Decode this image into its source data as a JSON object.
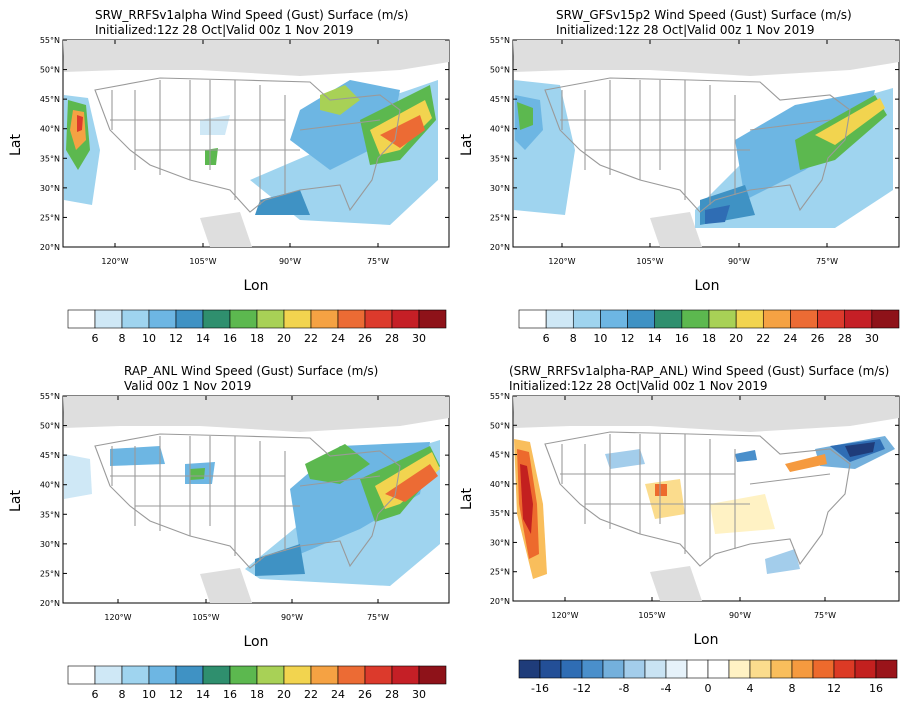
{
  "panels": [
    {
      "title": "SRW_RRFSv1alpha Wind Speed (Gust) Surface (m/s)",
      "subtitle": "Initialized:12z 28 Oct|Valid 00z 1 Nov 2019",
      "xlabel": "Lon",
      "ylabel": "Lat",
      "lat_ticks": [
        "55°N",
        "50°N",
        "45°N",
        "40°N",
        "35°N",
        "30°N",
        "25°N",
        "20°N"
      ],
      "lon_ticks": [
        "120°W",
        "105°W",
        "90°W",
        "75°W"
      ],
      "colorbar_labels": [
        "6",
        "8",
        "10",
        "12",
        "14",
        "16",
        "18",
        "20",
        "22",
        "24",
        "26",
        "28",
        "30"
      ],
      "colorbar_colors": [
        "#ffffff",
        "#cfe8f6",
        "#9fd4ef",
        "#6db6e3",
        "#3f92c4",
        "#2f8f6e",
        "#5cb84f",
        "#a8d156",
        "#f2d44f",
        "#f5a243",
        "#ec6b34",
        "#dc3a2c",
        "#c51f26",
        "#8e1219"
      ]
    },
    {
      "title": "SRW_GFSv15p2 Wind Speed (Gust) Surface (m/s)",
      "subtitle": "Initialized:12z 28 Oct|Valid 00z 1 Nov 2019",
      "xlabel": "Lon",
      "ylabel": "Lat",
      "lat_ticks": [
        "55°N",
        "50°N",
        "45°N",
        "40°N",
        "35°N",
        "30°N",
        "25°N",
        "20°N"
      ],
      "lon_ticks": [
        "120°W",
        "105°W",
        "90°W",
        "75°W"
      ],
      "colorbar_labels": [
        "6",
        "8",
        "10",
        "12",
        "14",
        "16",
        "18",
        "20",
        "22",
        "24",
        "26",
        "28",
        "30"
      ],
      "colorbar_colors": [
        "#ffffff",
        "#cfe8f6",
        "#9fd4ef",
        "#6db6e3",
        "#3f92c4",
        "#2f8f6e",
        "#5cb84f",
        "#a8d156",
        "#f2d44f",
        "#f5a243",
        "#ec6b34",
        "#dc3a2c",
        "#c51f26",
        "#8e1219"
      ]
    },
    {
      "title": "RAP_ANL Wind Speed (Gust) Surface (m/s)",
      "subtitle": "Valid 00z 1 Nov 2019",
      "xlabel": "Lon",
      "ylabel": "Lat",
      "lat_ticks": [
        "55°N",
        "50°N",
        "45°N",
        "40°N",
        "35°N",
        "30°N",
        "25°N",
        "20°N"
      ],
      "lon_ticks": [
        "120°W",
        "105°W",
        "90°W",
        "75°W"
      ],
      "colorbar_labels": [
        "6",
        "8",
        "10",
        "12",
        "14",
        "16",
        "18",
        "20",
        "22",
        "24",
        "26",
        "28",
        "30"
      ],
      "colorbar_colors": [
        "#ffffff",
        "#cfe8f6",
        "#9fd4ef",
        "#6db6e3",
        "#3f92c4",
        "#2f8f6e",
        "#5cb84f",
        "#a8d156",
        "#f2d44f",
        "#f5a243",
        "#ec6b34",
        "#dc3a2c",
        "#c51f26",
        "#8e1219"
      ]
    },
    {
      "title": "(SRW_RRFSv1alpha-RAP_ANL) Wind Speed (Gust) Surface (m/s)",
      "subtitle": "Initialized:12z 28 Oct|Valid 00z 1 Nov 2019",
      "xlabel": "Lon",
      "ylabel": "Lat",
      "lat_ticks": [
        "55°N",
        "50°N",
        "45°N",
        "40°N",
        "35°N",
        "30°N",
        "25°N",
        "20°N"
      ],
      "lon_ticks": [
        "120°W",
        "105°W",
        "90°W",
        "75°W"
      ],
      "colorbar_labels": [
        "-16",
        "",
        "-12",
        "",
        "-8",
        "",
        "-4",
        "",
        "0",
        "",
        "4",
        "",
        "8",
        "",
        "12",
        "",
        "16"
      ],
      "colorbar_colors": [
        "#1f3c7a",
        "#234f97",
        "#2f6db4",
        "#4a8fcb",
        "#74b0dc",
        "#a3cdeb",
        "#c9e3f3",
        "#e6f2fa",
        "#ffffff",
        "#ffffff",
        "#fff2c4",
        "#fbdc8d",
        "#f9be5c",
        "#f59a3f",
        "#ed6a2d",
        "#dc3a25",
        "#c3201f",
        "#9a141a"
      ]
    }
  ]
}
